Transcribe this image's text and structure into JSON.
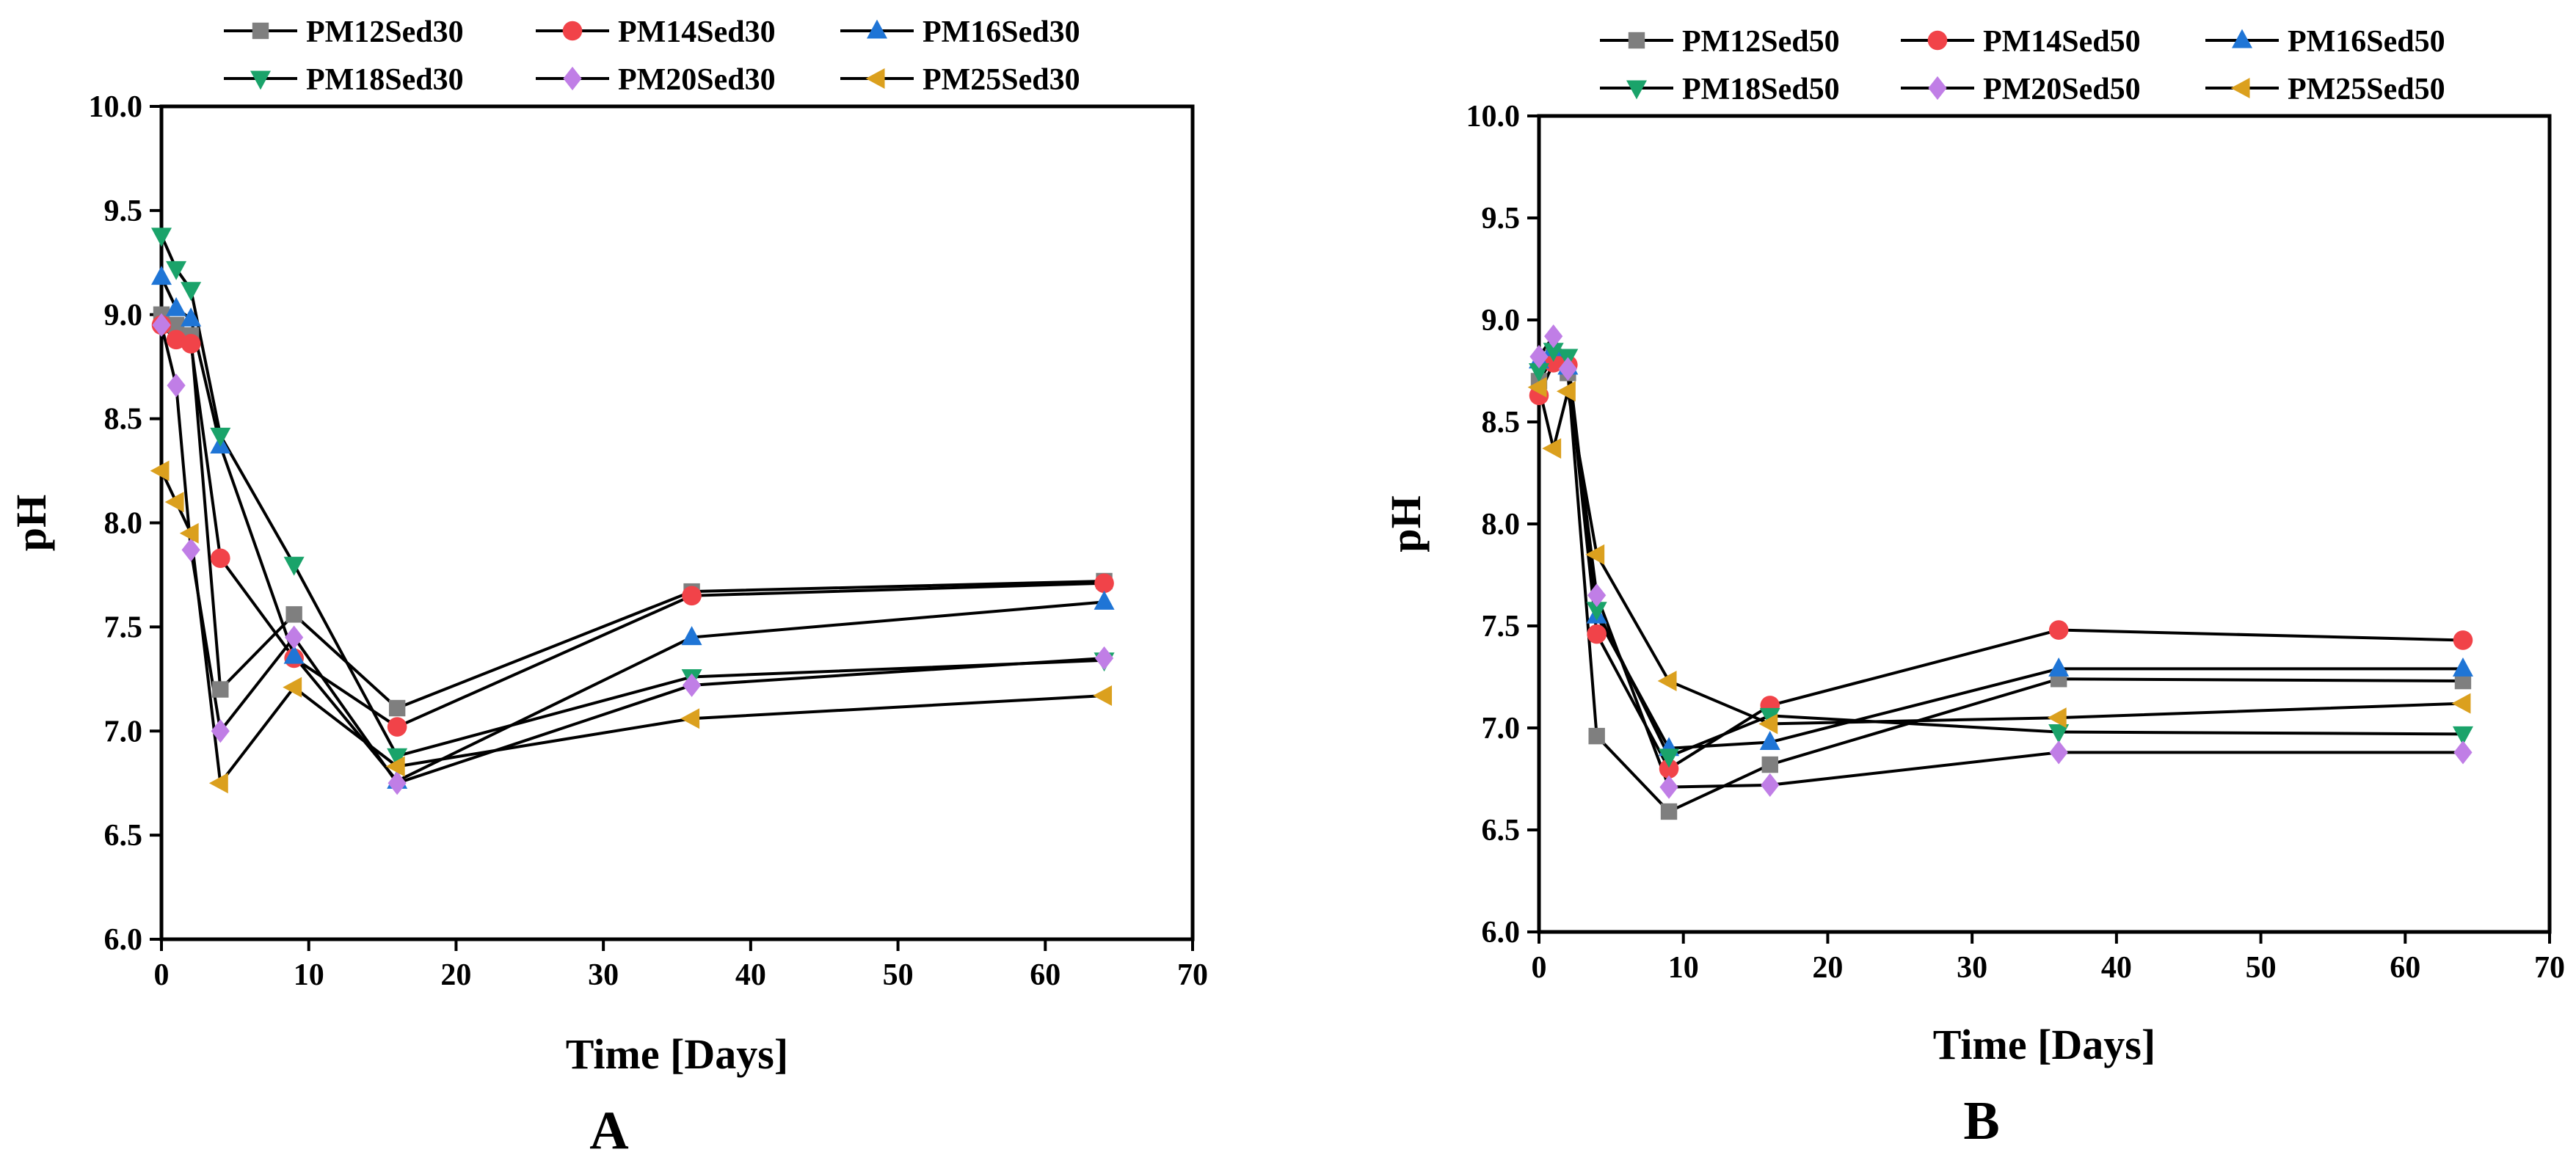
{
  "figure": {
    "panel_labels": [
      "A",
      "B"
    ]
  },
  "chart_data": [
    {
      "type": "line",
      "panel": "A",
      "xlabel": "Time [Days]",
      "ylabel": "pH",
      "xlim": [
        0,
        70
      ],
      "ylim": [
        6.0,
        10.0
      ],
      "xticks": [
        0,
        10,
        20,
        30,
        40,
        50,
        60,
        70
      ],
      "yticks": [
        "6.0",
        "6.5",
        "7.0",
        "7.5",
        "8.0",
        "8.5",
        "9.0",
        "9.5",
        "10.0"
      ],
      "legend_position": "top",
      "grid": false,
      "series": [
        {
          "name": "PM12Sed30",
          "marker": "square",
          "color": "#7f7f7f",
          "x": [
            0,
            1,
            2,
            4,
            9,
            16,
            36,
            64
          ],
          "y": [
            9.0,
            8.95,
            8.9,
            7.2,
            7.56,
            7.11,
            7.67,
            7.72
          ]
        },
        {
          "name": "PM14Sed30",
          "marker": "circle",
          "color": "#f14349",
          "x": [
            0,
            1,
            2,
            4,
            9,
            16,
            36,
            64
          ],
          "y": [
            8.95,
            8.88,
            8.86,
            7.83,
            7.35,
            7.02,
            7.65,
            7.71
          ]
        },
        {
          "name": "PM16Sed30",
          "marker": "triangle-up",
          "color": "#1f75d6",
          "x": [
            0,
            1,
            2,
            4,
            9,
            16,
            36,
            64
          ],
          "y": [
            9.18,
            9.03,
            8.98,
            8.37,
            7.36,
            6.76,
            7.45,
            7.62
          ]
        },
        {
          "name": "PM18Sed30",
          "marker": "triangle-down",
          "color": "#1aa36a",
          "x": [
            0,
            1,
            2,
            4,
            9,
            16,
            36,
            64
          ],
          "y": [
            9.38,
            9.22,
            9.12,
            8.42,
            7.8,
            6.88,
            7.26,
            7.34
          ]
        },
        {
          "name": "PM20Sed30",
          "marker": "diamond",
          "color": "#c07ee6",
          "x": [
            0,
            1,
            2,
            4,
            9,
            16,
            36,
            64
          ],
          "y": [
            8.95,
            8.66,
            7.87,
            7.0,
            7.45,
            6.75,
            7.22,
            7.35
          ]
        },
        {
          "name": "PM25Sed30",
          "marker": "triangle-left",
          "color": "#dba01e",
          "x": [
            0,
            1,
            2,
            4,
            9,
            16,
            36,
            64
          ],
          "y": [
            8.25,
            8.1,
            7.95,
            6.75,
            7.21,
            6.83,
            7.06,
            7.17
          ]
        }
      ]
    },
    {
      "type": "line",
      "panel": "B",
      "xlabel": "Time [Days]",
      "ylabel": "pH",
      "xlim": [
        0,
        70
      ],
      "ylim": [
        6.0,
        10.0
      ],
      "xticks": [
        0,
        10,
        20,
        30,
        40,
        50,
        60,
        70
      ],
      "yticks": [
        "6.0",
        "6.5",
        "7.0",
        "7.5",
        "8.0",
        "8.5",
        "9.0",
        "9.5",
        "10.0"
      ],
      "legend_position": "top",
      "grid": false,
      "series": [
        {
          "name": "PM12Sed50",
          "marker": "square",
          "color": "#7f7f7f",
          "x": [
            0,
            1,
            2,
            4,
            9,
            16,
            36,
            64
          ],
          "y": [
            8.7,
            8.82,
            8.74,
            6.96,
            6.59,
            6.82,
            7.24,
            7.23
          ]
        },
        {
          "name": "PM14Sed50",
          "marker": "circle",
          "color": "#f14349",
          "x": [
            0,
            1,
            2,
            4,
            9,
            16,
            36,
            64
          ],
          "y": [
            8.63,
            8.79,
            8.78,
            7.46,
            6.8,
            7.11,
            7.48,
            7.43
          ]
        },
        {
          "name": "PM16Sed50",
          "marker": "triangle-up",
          "color": "#1f75d6",
          "x": [
            0,
            1,
            2,
            4,
            9,
            16,
            36,
            64
          ],
          "y": [
            8.8,
            8.86,
            8.77,
            7.55,
            6.9,
            6.93,
            7.29,
            7.29
          ]
        },
        {
          "name": "PM18Sed50",
          "marker": "triangle-down",
          "color": "#1aa36a",
          "x": [
            0,
            1,
            2,
            4,
            9,
            16,
            36,
            64
          ],
          "y": [
            8.75,
            8.85,
            8.82,
            7.58,
            6.86,
            7.06,
            6.98,
            6.97
          ]
        },
        {
          "name": "PM20Sed50",
          "marker": "diamond",
          "color": "#c07ee6",
          "x": [
            0,
            1,
            2,
            4,
            9,
            16,
            36,
            64
          ],
          "y": [
            8.82,
            8.92,
            8.76,
            7.65,
            6.71,
            6.72,
            6.88,
            6.88
          ]
        },
        {
          "name": "PM25Sed50",
          "marker": "triangle-left",
          "color": "#dba01e",
          "x": [
            0,
            1,
            2,
            4,
            9,
            16,
            36,
            64
          ],
          "y": [
            8.67,
            8.37,
            8.65,
            7.85,
            7.23,
            7.02,
            7.05,
            7.12
          ]
        }
      ]
    }
  ]
}
